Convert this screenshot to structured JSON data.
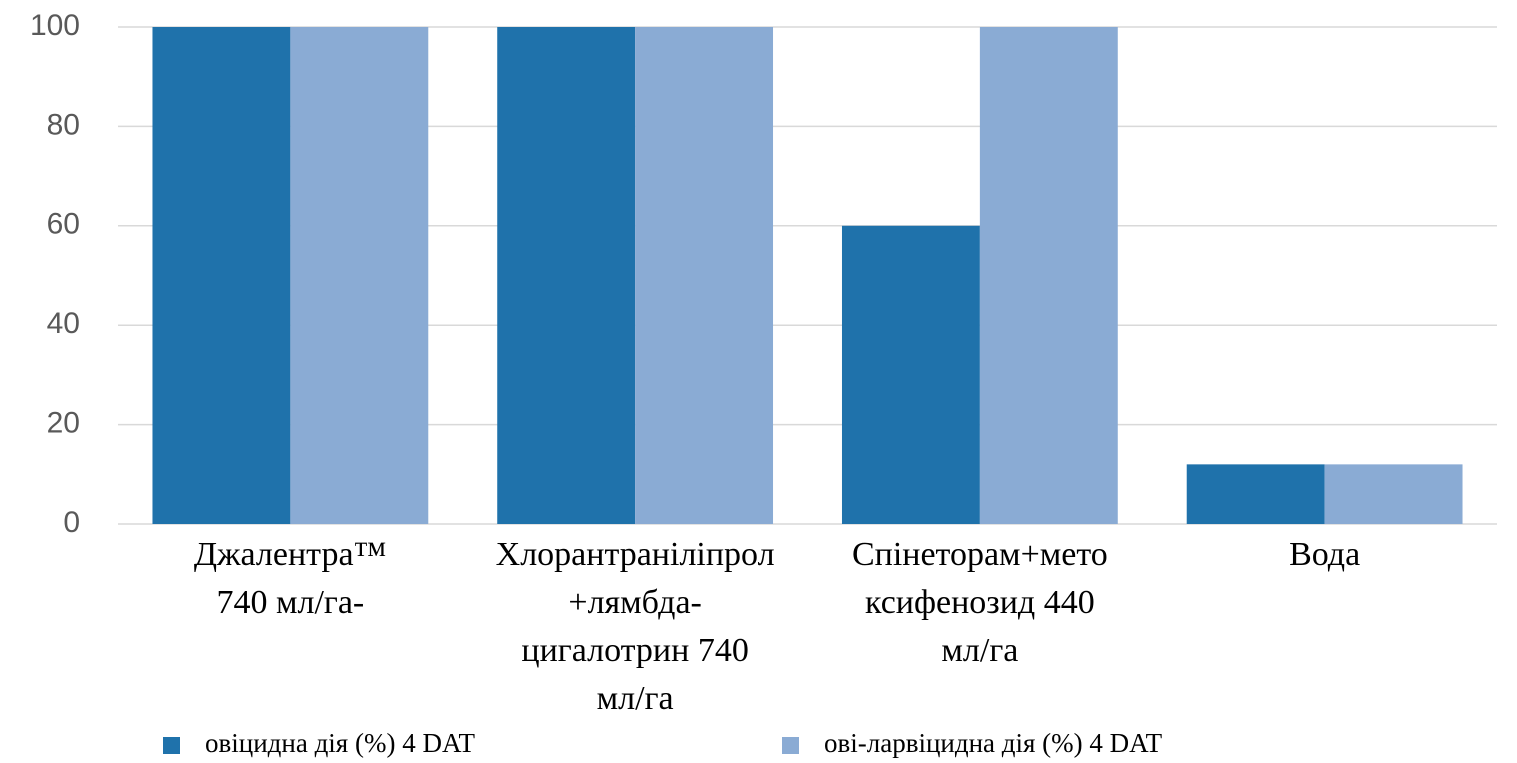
{
  "chart_data": {
    "type": "bar",
    "categories": [
      "Джалентра™\n740 мл/га-",
      "Хлорантраніліпрол\n+лямбда-\nцигалотрин 740\nмл/га",
      "Спінеторам+мето\nксифенозид 440\nмл/га",
      "Вода"
    ],
    "series": [
      {
        "name": "овіцидна дія (%) 4 DAT",
        "color": "#1f72ab",
        "values": [
          100,
          100,
          60,
          12
        ]
      },
      {
        "name": "ові-ларвіцидна дія (%) 4 DAT",
        "color": "#8aabd4",
        "values": [
          100,
          100,
          100,
          12
        ]
      }
    ],
    "ylim": [
      0,
      100
    ],
    "yticks": [
      0,
      20,
      40,
      60,
      80,
      100
    ],
    "grid": true,
    "legend": "bottom"
  }
}
